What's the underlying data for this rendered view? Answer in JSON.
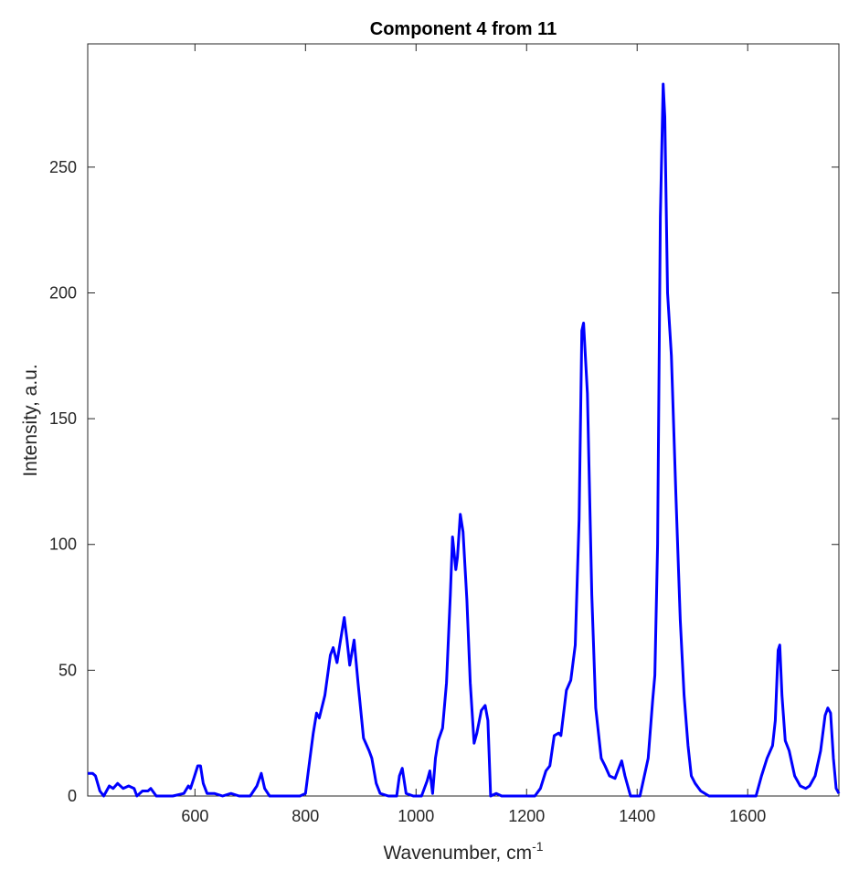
{
  "chart_data": {
    "type": "line",
    "title": "Component 4 from 11",
    "xlabel": "Wavenumber, cm",
    "xlabel_superscript": "-1",
    "ylabel": "Intensity, a.u.",
    "color": "#0000ff",
    "xlim": [
      406,
      1765
    ],
    "ylim": [
      0,
      299
    ],
    "xticks": [
      600,
      800,
      1000,
      1200,
      1400,
      1600
    ],
    "yticks": [
      0,
      50,
      100,
      150,
      200,
      250
    ],
    "x": [
      406,
      415,
      420,
      428,
      435,
      445,
      452,
      460,
      470,
      480,
      490,
      495,
      505,
      515,
      520,
      530,
      560,
      580,
      588,
      592,
      598,
      605,
      610,
      615,
      622,
      635,
      650,
      665,
      680,
      700,
      712,
      720,
      726,
      735,
      760,
      790,
      800,
      808,
      814,
      820,
      825,
      835,
      845,
      850,
      857,
      862,
      870,
      875,
      880,
      888,
      895,
      905,
      915,
      920,
      928,
      935,
      950,
      965,
      970,
      975,
      982,
      995,
      1010,
      1020,
      1025,
      1030,
      1035,
      1040,
      1048,
      1055,
      1062,
      1066,
      1072,
      1075,
      1080,
      1085,
      1092,
      1098,
      1105,
      1110,
      1118,
      1125,
      1130,
      1135,
      1145,
      1155,
      1180,
      1215,
      1225,
      1235,
      1242,
      1250,
      1258,
      1262,
      1272,
      1280,
      1288,
      1295,
      1300,
      1303,
      1310,
      1318,
      1325,
      1335,
      1342,
      1350,
      1360,
      1365,
      1372,
      1378,
      1388,
      1405,
      1415,
      1420,
      1428,
      1432,
      1437,
      1442,
      1447,
      1450,
      1455,
      1462,
      1470,
      1478,
      1485,
      1492,
      1498,
      1505,
      1515,
      1530,
      1600,
      1615,
      1625,
      1635,
      1645,
      1650,
      1655,
      1658,
      1662,
      1668,
      1675,
      1685,
      1695,
      1705,
      1712,
      1722,
      1732,
      1740,
      1745,
      1750,
      1755,
      1760,
      1765
    ],
    "values": [
      9,
      9,
      8,
      2,
      0,
      4,
      3,
      5,
      3,
      4,
      3,
      0,
      2,
      2,
      3,
      0,
      0,
      1,
      4,
      3,
      7,
      12,
      12,
      5,
      1,
      1,
      0,
      1,
      0,
      0,
      4,
      9,
      3,
      0,
      0,
      0,
      1,
      15,
      25,
      33,
      31,
      40,
      56,
      59,
      53,
      60,
      71,
      62,
      52,
      62,
      45,
      23,
      18,
      15,
      5,
      1,
      0,
      0,
      8,
      11,
      1,
      0,
      0,
      6,
      10,
      1,
      15,
      22,
      27,
      45,
      80,
      103,
      90,
      95,
      112,
      105,
      78,
      45,
      21,
      25,
      34,
      36,
      30,
      0,
      1,
      0,
      0,
      0,
      3,
      10,
      12,
      24,
      25,
      24,
      42,
      46,
      60,
      110,
      185,
      188,
      160,
      80,
      35,
      15,
      12,
      8,
      7,
      10,
      14,
      8,
      0,
      0,
      10,
      15,
      38,
      48,
      100,
      230,
      283,
      270,
      200,
      175,
      120,
      70,
      40,
      20,
      8,
      5,
      2,
      0,
      0,
      0,
      8,
      15,
      20,
      30,
      58,
      60,
      40,
      22,
      18,
      8,
      4,
      3,
      4,
      8,
      18,
      32,
      35,
      33,
      15,
      3,
      1
    ]
  }
}
